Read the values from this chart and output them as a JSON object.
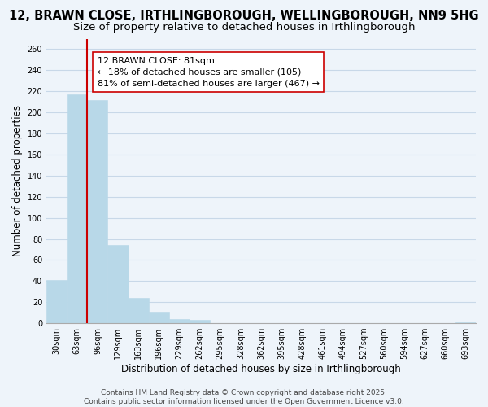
{
  "title": "12, BRAWN CLOSE, IRTHLINGBOROUGH, WELLINGBOROUGH, NN9 5HG",
  "subtitle": "Size of property relative to detached houses in Irthlingborough",
  "xlabel": "Distribution of detached houses by size in Irthlingborough",
  "ylabel": "Number of detached properties",
  "bar_values": [
    41,
    217,
    212,
    74,
    24,
    11,
    4,
    3,
    0,
    0,
    0,
    0,
    0,
    0,
    0,
    0,
    0,
    0,
    0,
    0,
    1
  ],
  "bin_labels": [
    "30sqm",
    "63sqm",
    "96sqm",
    "129sqm",
    "163sqm",
    "196sqm",
    "229sqm",
    "262sqm",
    "295sqm",
    "328sqm",
    "362sqm",
    "395sqm",
    "428sqm",
    "461sqm",
    "494sqm",
    "527sqm",
    "560sqm",
    "594sqm",
    "627sqm",
    "660sqm",
    "693sqm"
  ],
  "bar_color": "#b8d8e8",
  "bar_edge_color": "#b8d8e8",
  "vline_x_index": 1,
  "vline_color": "#cc0000",
  "annotation_text": "12 BRAWN CLOSE: 81sqm\n← 18% of detached houses are smaller (105)\n81% of semi-detached houses are larger (467) →",
  "annotation_box_color": "#ffffff",
  "annotation_box_edge": "#cc0000",
  "ylim": [
    0,
    270
  ],
  "yticks": [
    0,
    20,
    40,
    60,
    80,
    100,
    120,
    140,
    160,
    180,
    200,
    220,
    240,
    260
  ],
  "grid_color": "#c8d8e8",
  "bg_color": "#eef4fa",
  "footer_line1": "Contains HM Land Registry data © Crown copyright and database right 2025.",
  "footer_line2": "Contains public sector information licensed under the Open Government Licence v3.0.",
  "title_fontsize": 10.5,
  "subtitle_fontsize": 9.5,
  "axis_label_fontsize": 8.5,
  "tick_fontsize": 7,
  "annotation_fontsize": 8,
  "footer_fontsize": 6.5
}
